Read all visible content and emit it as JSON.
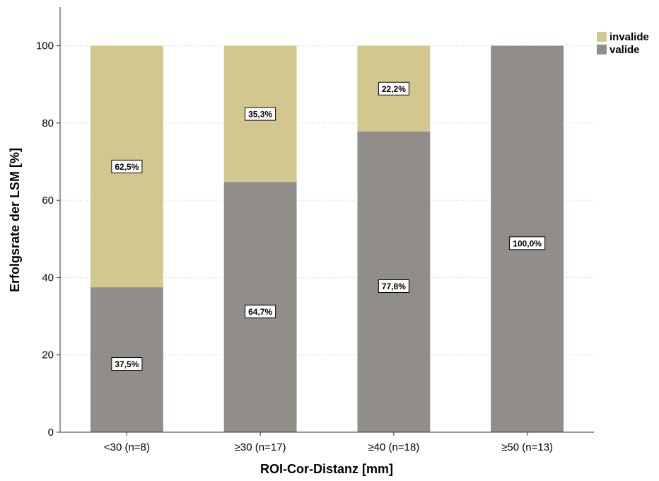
{
  "chart_data": {
    "type": "bar",
    "stacked": true,
    "orientation": "vertical",
    "title": "",
    "xlabel": "ROI-Cor-Distanz [mm]",
    "ylabel": "Erfolgsrate der LSM [%]",
    "ylim": [
      0,
      110
    ],
    "yticks": [
      0,
      20,
      40,
      60,
      80,
      100
    ],
    "grid": true,
    "legend_position": "top-right",
    "categories": [
      "<30 (n=8)",
      "≥30 (n=17)",
      "≥40 (n=18)",
      "≥50 (n=13)"
    ],
    "series": [
      {
        "name": "valide",
        "color": "#918d89",
        "values": [
          37.5,
          64.7,
          77.8,
          100.0
        ],
        "labels": [
          "37,5%",
          "64,7%",
          "77,8%",
          "100,0%"
        ]
      },
      {
        "name": "invalide",
        "color": "#d1c78f",
        "values": [
          62.5,
          35.3,
          22.2,
          0
        ],
        "labels": [
          "62,5%",
          "35,3%",
          "22,2%",
          ""
        ]
      }
    ],
    "legend_order": [
      "invalide",
      "valide"
    ]
  }
}
